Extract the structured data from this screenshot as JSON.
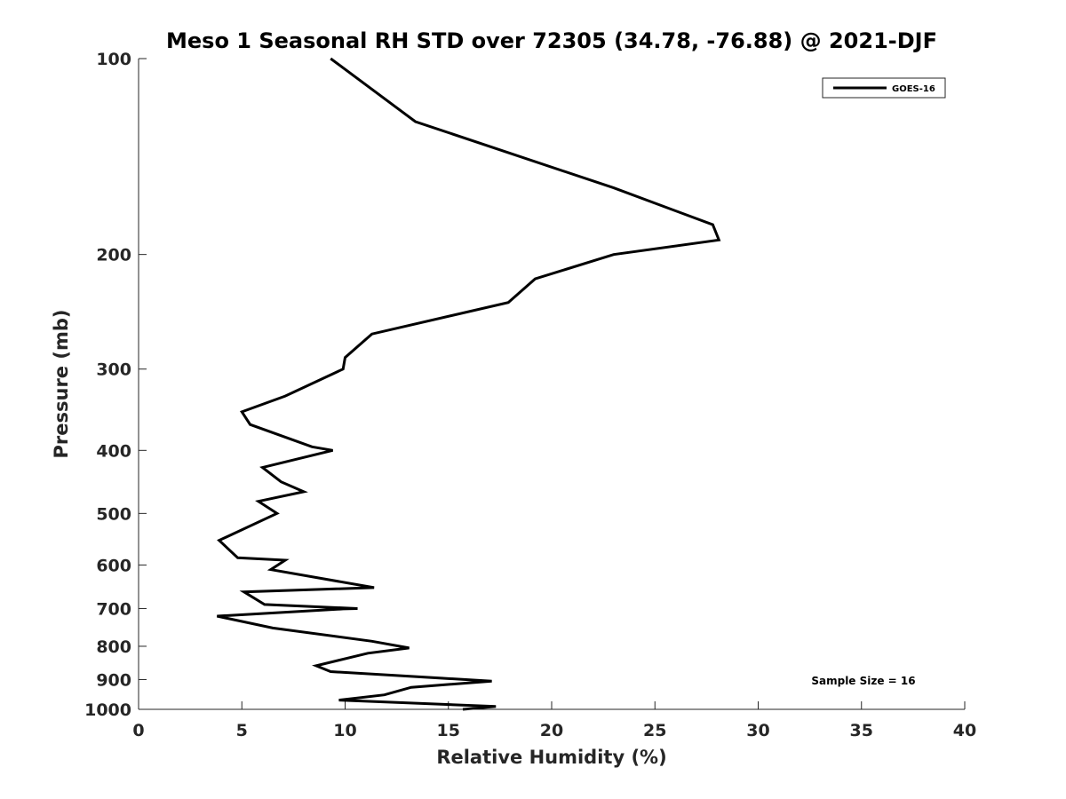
{
  "chart_data": {
    "type": "line",
    "title": "Meso 1 Seasonal RH STD over 72305 (34.78, -76.88) @ 2021-DJF",
    "xlabel": "Relative Humidity (%)",
    "ylabel": "Pressure (mb)",
    "xlim": [
      0,
      40
    ],
    "ylim": [
      100,
      1000
    ],
    "y_scale": "log",
    "y_reversed": true,
    "x_ticks": [
      0,
      5,
      10,
      15,
      20,
      25,
      30,
      35,
      40
    ],
    "y_ticks": [
      100,
      200,
      300,
      400,
      500,
      600,
      700,
      800,
      900,
      1000
    ],
    "legend": {
      "position": "top-right",
      "entries": [
        "GOES-16"
      ]
    },
    "annotation": "Sample Size = 16",
    "series": [
      {
        "name": "GOES-16",
        "color": "#000000",
        "rh": [
          9.3,
          13.4,
          23.0,
          27.8,
          28.1,
          23.0,
          19.2,
          17.9,
          11.3,
          10.0,
          9.9,
          7.1,
          5.0,
          5.4,
          8.4,
          9.4,
          6.0,
          6.9,
          8.0,
          5.8,
          6.7,
          3.9,
          4.8,
          7.1,
          6.4,
          11.4,
          5.1,
          6.1,
          10.6,
          9.9,
          3.8,
          6.5,
          11.3,
          13.1,
          11.1,
          8.6,
          9.3,
          17.1,
          13.2,
          11.9,
          9.7,
          17.3,
          15.7
        ],
        "pressure": [
          100,
          125,
          158,
          180,
          190,
          200,
          218,
          237,
          265,
          288,
          300,
          330,
          349,
          365,
          395,
          400,
          425,
          447,
          463,
          479,
          500,
          550,
          585,
          590,
          610,
          650,
          660,
          690,
          700,
          701,
          719,
          750,
          786,
          805,
          820,
          857,
          875,
          905,
          925,
          950,
          968,
          990,
          1000
        ]
      }
    ]
  }
}
